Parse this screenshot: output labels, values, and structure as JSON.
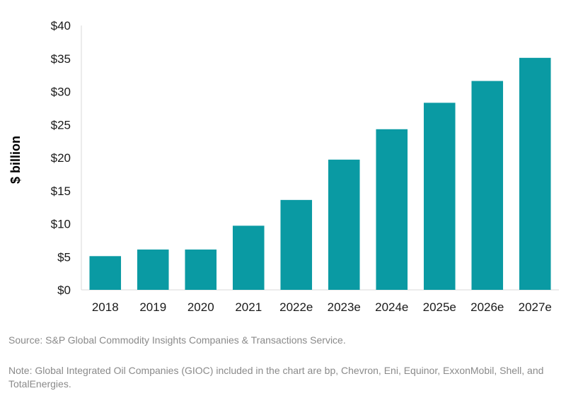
{
  "chart_data": {
    "type": "bar",
    "categories": [
      "2018",
      "2019",
      "2020",
      "2021",
      "2022e",
      "2023e",
      "2024e",
      "2025e",
      "2026e",
      "2027e"
    ],
    "values": [
      5.1,
      6.1,
      6.1,
      9.7,
      13.6,
      19.7,
      24.3,
      28.3,
      31.6,
      35.1
    ],
    "ylabel": "$ billion",
    "xlabel": "",
    "ylim": [
      0,
      40
    ],
    "yticks": [
      0,
      5,
      10,
      15,
      20,
      25,
      30,
      35,
      40
    ],
    "ytick_labels": [
      "$0",
      "$5",
      "$10",
      "$15",
      "$20",
      "$25",
      "$30",
      "$35",
      "$40"
    ],
    "bar_color": "#0a9aa3",
    "grid": false
  },
  "source": "Source: S&P Global Commodity Insights Companies & Transactions Service.",
  "note": "Note: Global Integrated Oil Companies (GIOC) included in the chart are bp, Chevron, Eni, Equinor, ExxonMobil, Shell, and TotalEnergies."
}
